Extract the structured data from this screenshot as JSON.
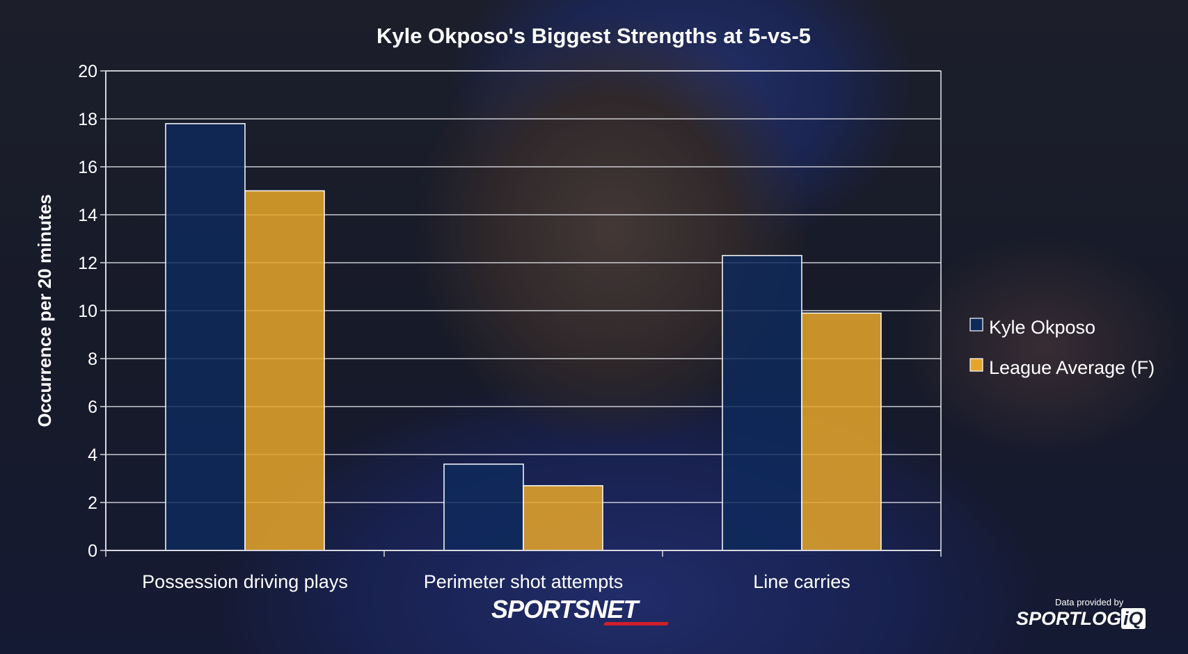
{
  "chart_data": {
    "type": "bar",
    "title": "Kyle Okposo's Biggest Strengths at 5-vs-5",
    "xlabel": "",
    "ylabel": "Occurrence per 20 minutes",
    "ylim": [
      0,
      20
    ],
    "yticks": [
      0,
      2,
      4,
      6,
      8,
      10,
      12,
      14,
      16,
      18,
      20
    ],
    "grid": true,
    "legend_position": "right",
    "categories": [
      "Possession driving plays",
      "Perimeter shot attempts",
      "Line carries"
    ],
    "series": [
      {
        "name": "Kyle Okposo",
        "values": [
          17.8,
          3.6,
          12.3
        ],
        "color": "#0e2a5c"
      },
      {
        "name": "League Average (F)",
        "values": [
          15.0,
          2.7,
          9.9
        ],
        "color": "#e6a52a"
      }
    ]
  },
  "credits": {
    "brand": "SPORTSNET",
    "data_provider_label": "Data provided by",
    "data_provider_name": "SPORTLOG",
    "data_provider_suffix": "iQ"
  }
}
